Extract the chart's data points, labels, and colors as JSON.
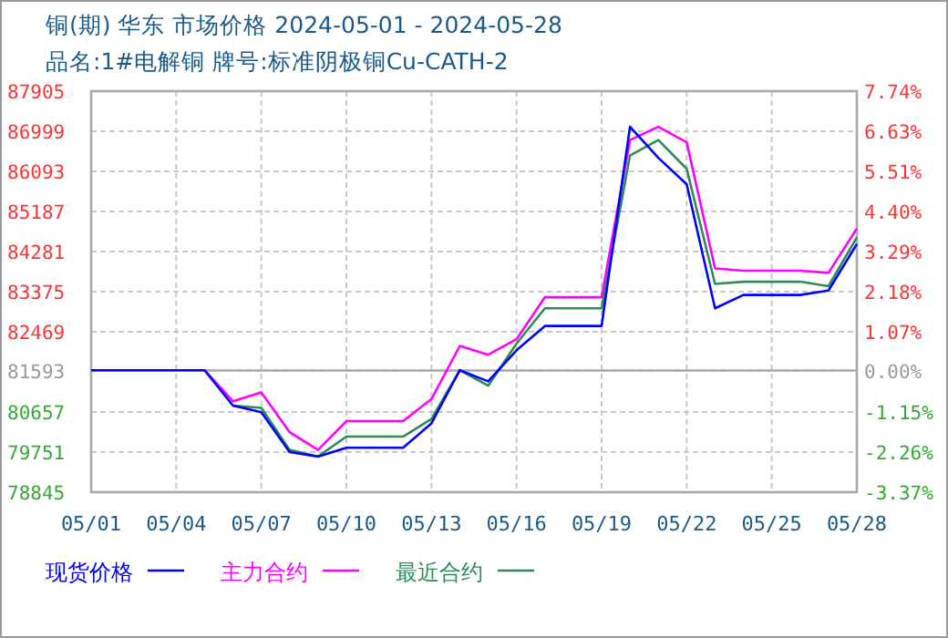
{
  "chart_data": {
    "type": "line",
    "title": "铜(期) 华东 市场价格 2024-05-01 - 2024-05-28",
    "subtitle": "品名:1#电解铜 牌号:标准阴极铜Cu-CATH-2",
    "x": [
      "2024-05-01",
      "2024-05-02",
      "2024-05-03",
      "2024-05-04",
      "2024-05-05",
      "2024-05-06",
      "2024-05-07",
      "2024-05-08",
      "2024-05-09",
      "2024-05-10",
      "2024-05-11",
      "2024-05-12",
      "2024-05-13",
      "2024-05-14",
      "2024-05-15",
      "2024-05-16",
      "2024-05-17",
      "2024-05-18",
      "2024-05-19",
      "2024-05-20",
      "2024-05-21",
      "2024-05-22",
      "2024-05-23",
      "2024-05-24",
      "2024-05-25",
      "2024-05-26",
      "2024-05-27",
      "2024-05-28"
    ],
    "series": [
      {
        "name": "现货价格",
        "color": "#0000ff",
        "values": [
          81600,
          81600,
          81600,
          81600,
          81600,
          80800,
          80650,
          79750,
          79650,
          79850,
          79850,
          79850,
          80400,
          81600,
          81350,
          82050,
          82600,
          82600,
          82600,
          87100,
          86400,
          85800,
          83000,
          83300,
          83300,
          83300,
          83400,
          84450
        ]
      },
      {
        "name": "主力合约",
        "color": "#ff00ff",
        "values": [
          null,
          null,
          null,
          null,
          81600,
          80900,
          81100,
          80200,
          79800,
          80450,
          80450,
          80450,
          80950,
          82150,
          81950,
          82300,
          83250,
          83250,
          83250,
          86800,
          87100,
          86750,
          83900,
          83850,
          83850,
          83850,
          83800,
          84800
        ]
      },
      {
        "name": "最近合约",
        "color": "#2e8b57",
        "values": [
          null,
          null,
          null,
          null,
          null,
          80800,
          80750,
          79800,
          79650,
          80100,
          80100,
          80100,
          80500,
          81600,
          81250,
          82200,
          83000,
          83000,
          83000,
          86450,
          86800,
          86150,
          83550,
          83600,
          83600,
          83600,
          83500,
          84600
        ]
      }
    ],
    "xlim": [
      "2024-05-01",
      "2024-05-28"
    ],
    "xticks": [
      {
        "value": "2024-05-01",
        "label": "05/01"
      },
      {
        "value": "2024-05-04",
        "label": "05/04"
      },
      {
        "value": "2024-05-07",
        "label": "05/07"
      },
      {
        "value": "2024-05-10",
        "label": "05/10"
      },
      {
        "value": "2024-05-13",
        "label": "05/13"
      },
      {
        "value": "2024-05-16",
        "label": "05/16"
      },
      {
        "value": "2024-05-19",
        "label": "05/19"
      },
      {
        "value": "2024-05-22",
        "label": "05/22"
      },
      {
        "value": "2024-05-25",
        "label": "05/25"
      },
      {
        "value": "2024-05-28",
        "label": "05/28"
      }
    ],
    "ylim": [
      78845,
      87905
    ],
    "yticks": [
      87905,
      86999,
      86093,
      85187,
      84281,
      83375,
      82469,
      81593,
      80657,
      79751,
      78845
    ],
    "y2lim": [
      -3.37,
      7.74
    ],
    "y2ticks": [
      {
        "value": 7.74,
        "label": "7.74%"
      },
      {
        "value": 6.63,
        "label": "6.63%"
      },
      {
        "value": 5.51,
        "label": "5.51%"
      },
      {
        "value": 4.4,
        "label": "4.40%"
      },
      {
        "value": 3.29,
        "label": "3.29%"
      },
      {
        "value": 2.18,
        "label": "2.18%"
      },
      {
        "value": 1.07,
        "label": "1.07%"
      },
      {
        "value": 0,
        "label": "0.00%"
      },
      {
        "value": -1.15,
        "label": "-1.15%"
      },
      {
        "value": -2.26,
        "label": "-2.26%"
      },
      {
        "value": -3.37,
        "label": "-3.37%"
      }
    ],
    "grid": true,
    "legend": "bottom",
    "marker": "none",
    "line_style": "solid"
  }
}
